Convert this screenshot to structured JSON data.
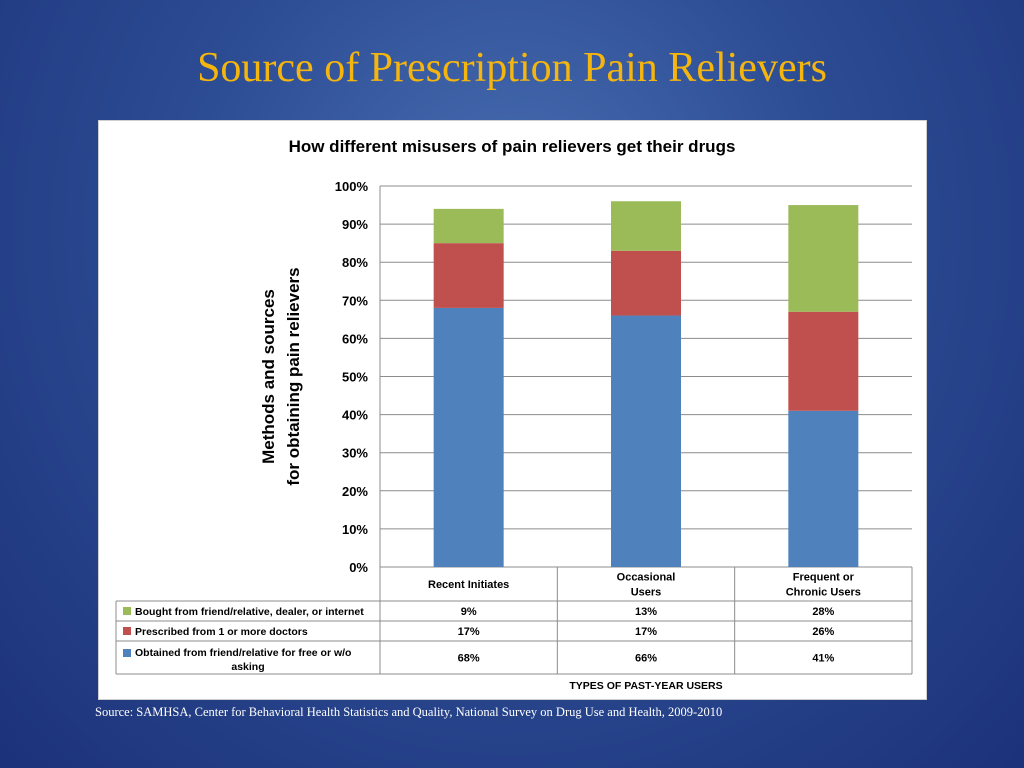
{
  "slide": {
    "title": "Source of Prescription Pain Relievers",
    "source": "Source:  SAMHSA, Center for Behavioral Health Statistics and Quality, National Survey on Drug Use and Health, 2009-2010"
  },
  "colors": {
    "title": "#f5b50f",
    "bought": "#9bbb59",
    "prescribed": "#c0504d",
    "obtained": "#4f81bd"
  },
  "chart_data": {
    "type": "bar",
    "stacked": true,
    "title": "How different misusers of pain relievers get their drugs",
    "ylabel": [
      "Methods and sources",
      "for obtaining pain relievers"
    ],
    "xlabel": "TYPES OF PAST-YEAR USERS",
    "ylim": [
      0,
      100
    ],
    "yticks": [
      "0%",
      "10%",
      "20%",
      "30%",
      "40%",
      "50%",
      "60%",
      "70%",
      "80%",
      "90%",
      "100%"
    ],
    "grid": true,
    "categories": [
      [
        "Recent Initiates"
      ],
      [
        "Occasional",
        "Users"
      ],
      [
        "Frequent or",
        "Chronic Users"
      ]
    ],
    "series": [
      {
        "name": [
          "Obtained from friend/relative for free or w/o",
          "asking"
        ],
        "color": "#4f81bd",
        "values": [
          68,
          66,
          41
        ],
        "labels": [
          "68%",
          "66%",
          "41%"
        ]
      },
      {
        "name": [
          "Prescribed from 1 or more doctors"
        ],
        "color": "#c0504d",
        "values": [
          17,
          17,
          26
        ],
        "labels": [
          "17%",
          "17%",
          "26%"
        ]
      },
      {
        "name": [
          "Bought from friend/relative, dealer, or internet"
        ],
        "color": "#9bbb59",
        "values": [
          9,
          13,
          28
        ],
        "labels": [
          "9%",
          "13%",
          "28%"
        ]
      }
    ],
    "table_row_order": [
      2,
      1,
      0
    ]
  }
}
